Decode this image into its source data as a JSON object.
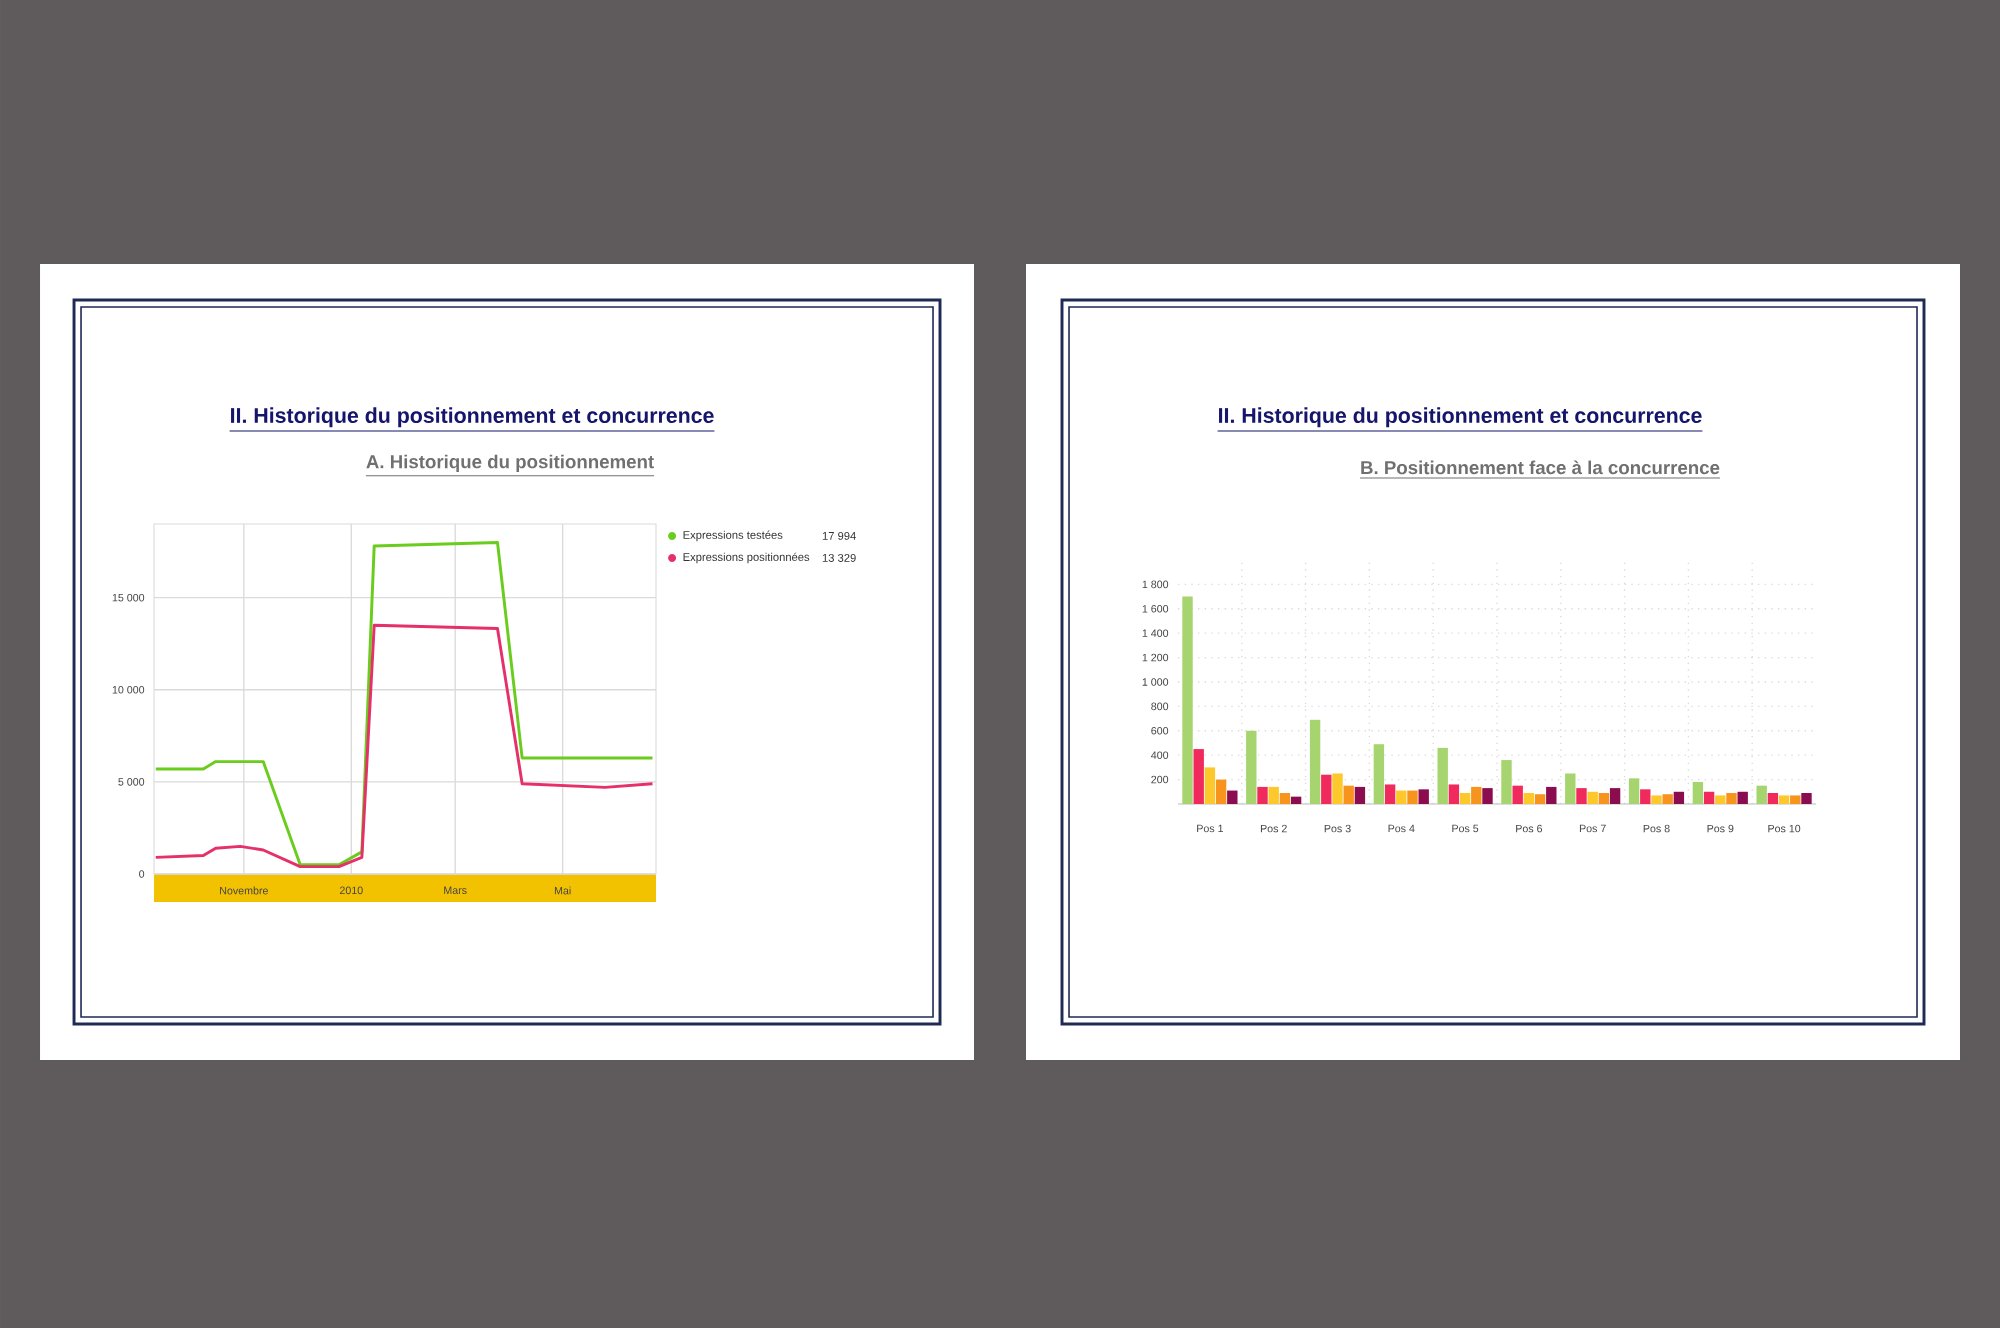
{
  "chart_data": [
    {
      "type": "line",
      "title": "II. Historique du positionnement et concurrence",
      "subtitle": "A. Historique du positionnement",
      "x": [
        "2009-09-12",
        "2009-10-09",
        "2009-10-16",
        "2009-10-30",
        "2009-11-12",
        "2009-12-03",
        "2009-12-25",
        "2010-01-07",
        "2010-01-14",
        "2010-03-25",
        "2010-04-08",
        "2010-05-25",
        "2010-06-21"
      ],
      "series": [
        {
          "name": "Expressions testées",
          "color": "#6acc1c",
          "values": [
            5700,
            5700,
            6100,
            6100,
            6100,
            500,
            500,
            1200,
            17800,
            17994,
            6300,
            6300,
            6300
          ]
        },
        {
          "name": "Expressions positionnées",
          "color": "#e5306a",
          "values": [
            900,
            1000,
            1400,
            1500,
            1300,
            400,
            400,
            900,
            13500,
            13329,
            4900,
            4700,
            4900
          ]
        }
      ],
      "xlim": [
        "2009-09-11",
        "2010-06-23"
      ],
      "ylim": [
        0,
        19000
      ],
      "xticks": [
        {
          "value": "2009-11-01",
          "label": "Novembre"
        },
        {
          "value": "2010-01-01",
          "label": "2010"
        },
        {
          "value": "2010-03-01",
          "label": "Mars"
        },
        {
          "value": "2010-05-01",
          "label": "Mai"
        }
      ],
      "yticks": [
        0,
        {
          "value": 5000,
          "label": "5 000"
        },
        {
          "value": 10000,
          "label": "10 000"
        },
        {
          "value": 15000,
          "label": "15 000"
        }
      ],
      "grid": true,
      "legend": "right",
      "annotations": [
        "17 994",
        "13 329"
      ]
    },
    {
      "type": "bar",
      "title": "II. Historique du positionnement et concurrence",
      "subtitle": "B. Positionnement face à la concurrence",
      "categories": [
        "Pos 1",
        "Pos 2",
        "Pos 3",
        "Pos 4",
        "Pos 5",
        "Pos 6",
        "Pos 7",
        "Pos 8",
        "Pos 9",
        "Pos 10"
      ],
      "series": [
        {
          "color": "#a6d46e",
          "values": [
            1700,
            600,
            690,
            490,
            460,
            360,
            250,
            210,
            180,
            150
          ]
        },
        {
          "color": "#f02a5c",
          "values": [
            450,
            140,
            240,
            160,
            160,
            150,
            130,
            120,
            100,
            90
          ]
        },
        {
          "color": "#fdc82b",
          "values": [
            300,
            140,
            250,
            110,
            90,
            90,
            100,
            70,
            70,
            70
          ]
        },
        {
          "color": "#f7941e",
          "values": [
            200,
            90,
            150,
            110,
            140,
            80,
            90,
            80,
            90,
            70
          ]
        },
        {
          "color": "#8b0d4f",
          "values": [
            110,
            60,
            140,
            120,
            130,
            140,
            130,
            100,
            100,
            90
          ]
        }
      ],
      "ylim": [
        0,
        2000
      ],
      "yticks": [
        200,
        400,
        600,
        800,
        {
          "value": 1000,
          "label": "1 000"
        },
        {
          "value": 1200,
          "label": "1 200"
        },
        {
          "value": 1400,
          "label": "1 400"
        },
        {
          "value": 1600,
          "label": "1 600"
        },
        {
          "value": 1800,
          "label": "1 800"
        }
      ],
      "grid": true
    }
  ]
}
